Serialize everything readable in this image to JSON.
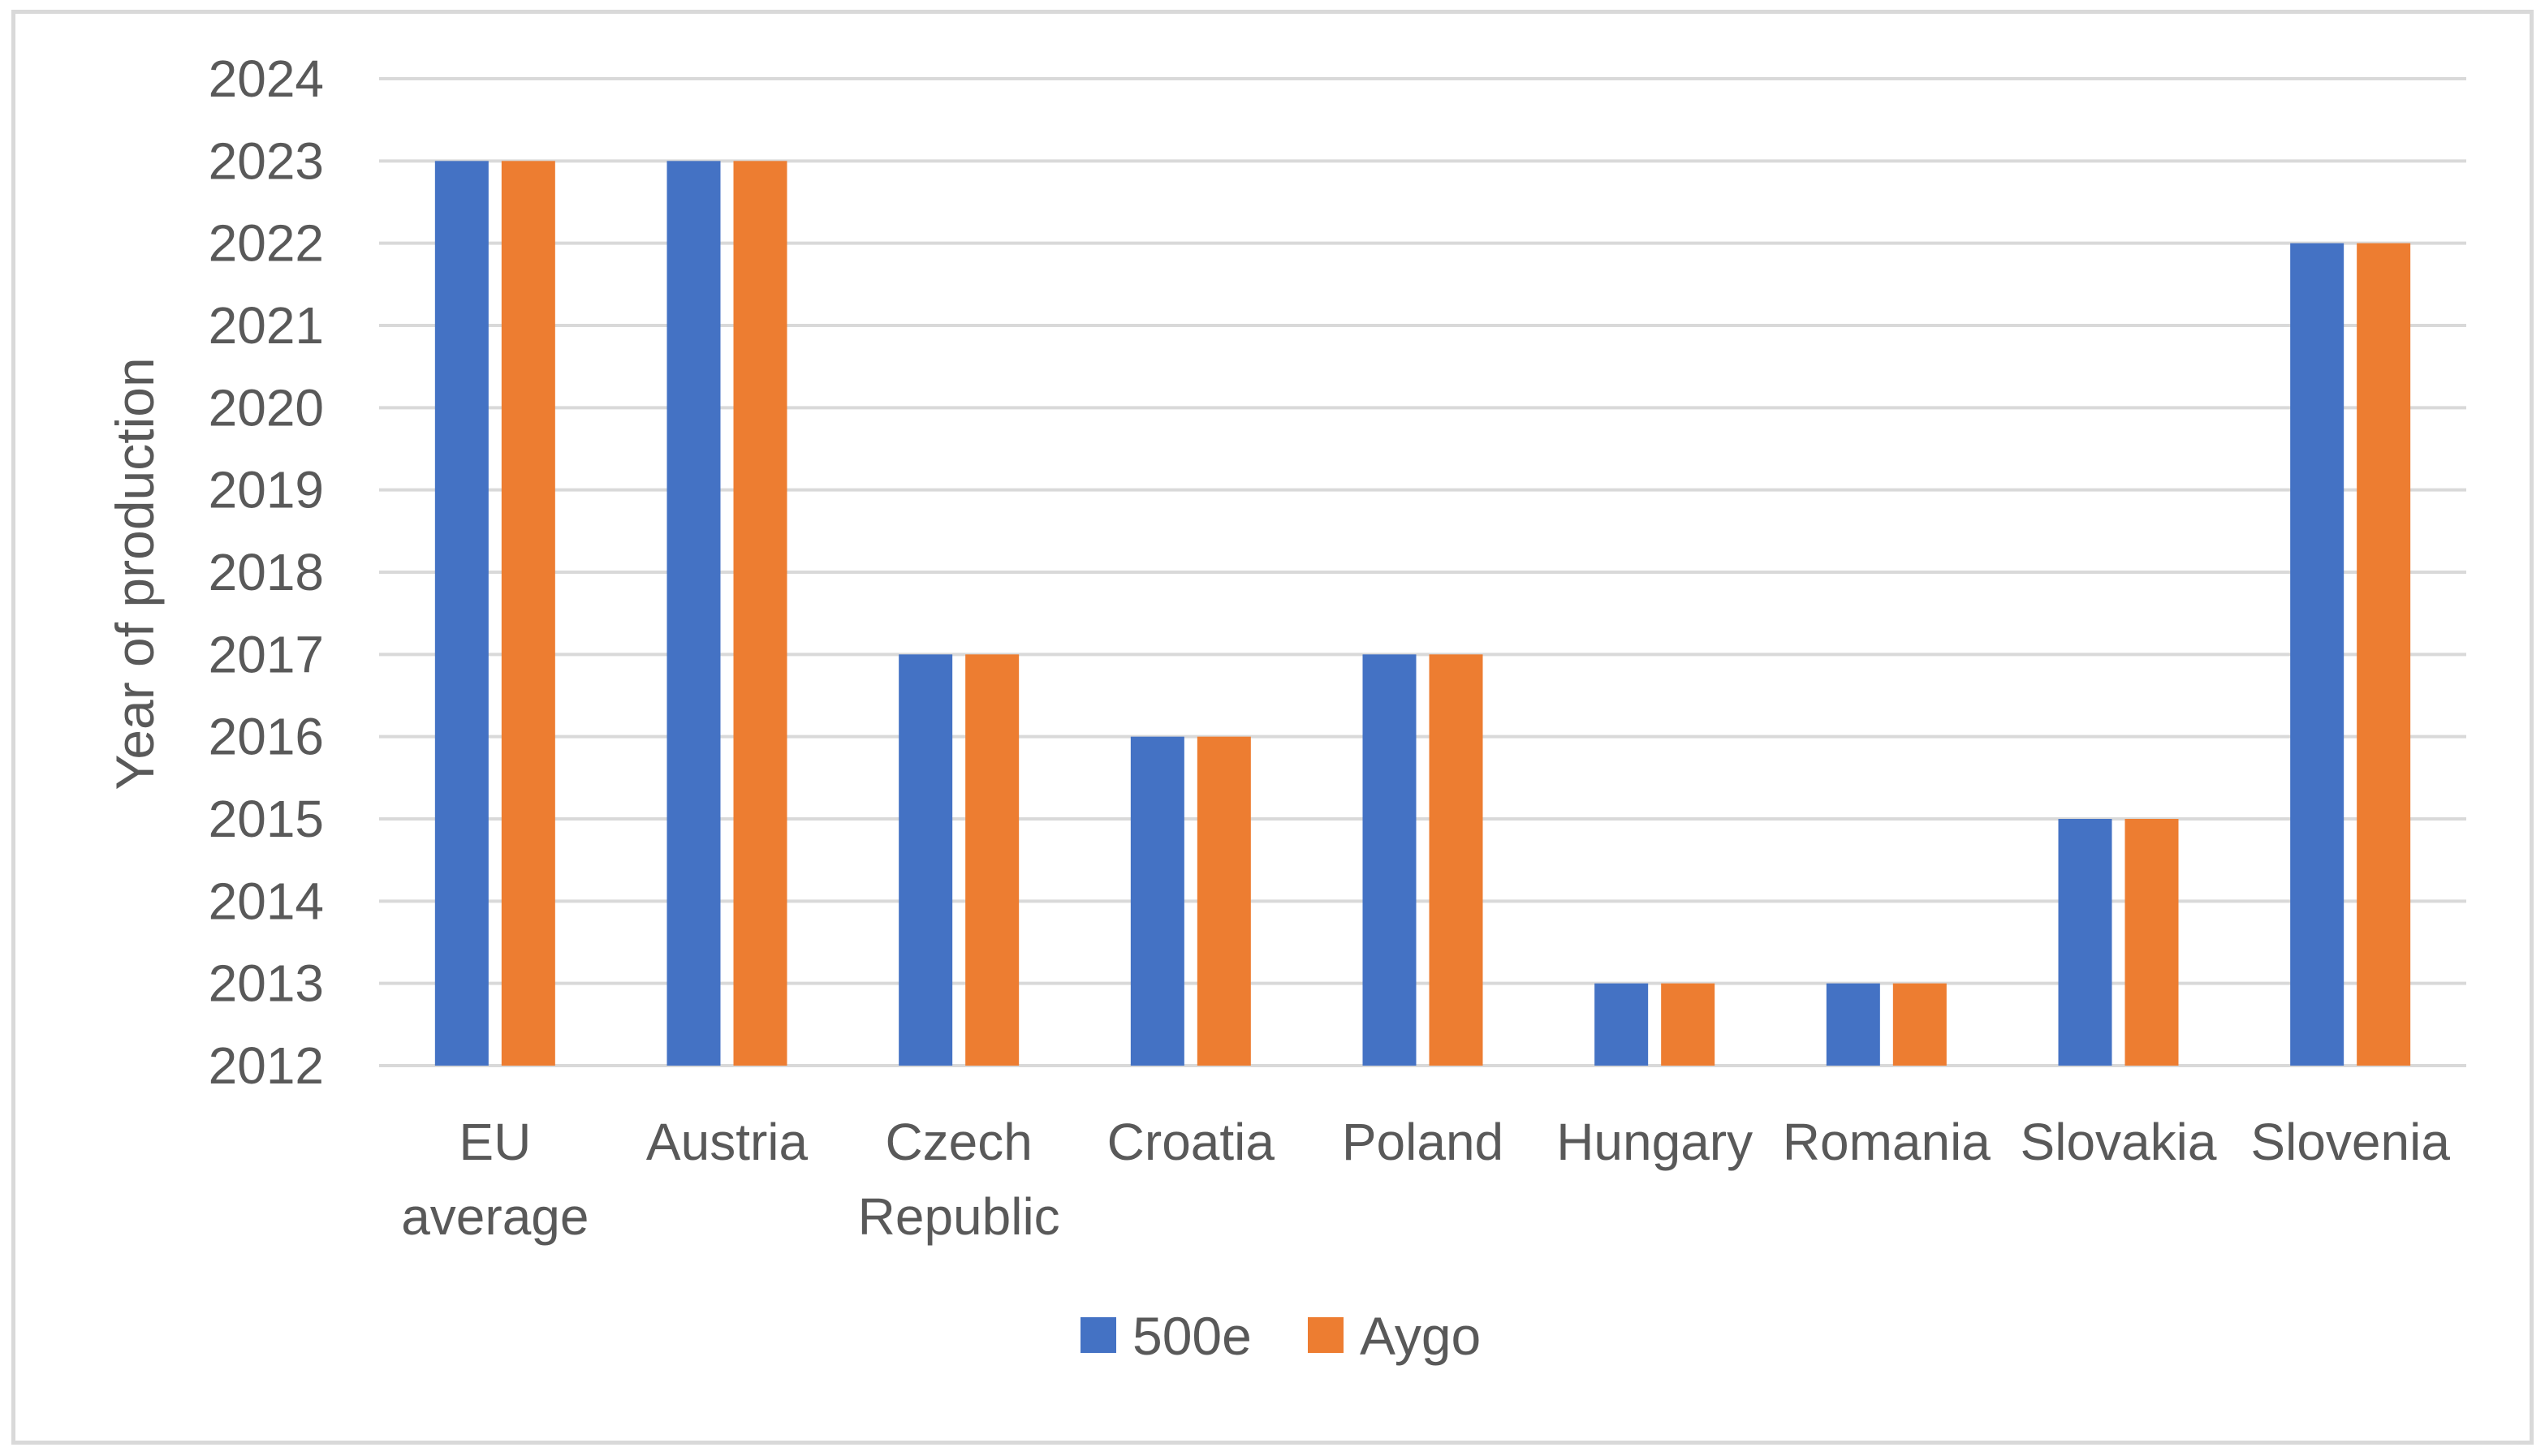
{
  "chart_data": {
    "type": "bar",
    "title": "",
    "xlabel": "",
    "ylabel": "Year of production",
    "ylim": [
      2012,
      2024
    ],
    "yticks": [
      2012,
      2013,
      2014,
      2015,
      2016,
      2017,
      2018,
      2019,
      2020,
      2021,
      2022,
      2023,
      2024
    ],
    "grid": true,
    "legend_position": "bottom",
    "categories": [
      [
        "EU",
        "average"
      ],
      [
        "Austria"
      ],
      [
        "Czech",
        "Republic"
      ],
      [
        "Croatia"
      ],
      [
        "Poland"
      ],
      [
        "Hungary"
      ],
      [
        "Romania"
      ],
      [
        "Slovakia"
      ],
      [
        "Slovenia"
      ]
    ],
    "series": [
      {
        "name": "500e",
        "color": "#4472c4",
        "values": [
          2023,
          2023,
          2017,
          2016,
          2017,
          2013,
          2013,
          2015,
          2022
        ]
      },
      {
        "name": "Aygo",
        "color": "#ed7d31",
        "values": [
          2023,
          2023,
          2017,
          2016,
          2017,
          2013,
          2013,
          2015,
          2022
        ]
      }
    ]
  }
}
